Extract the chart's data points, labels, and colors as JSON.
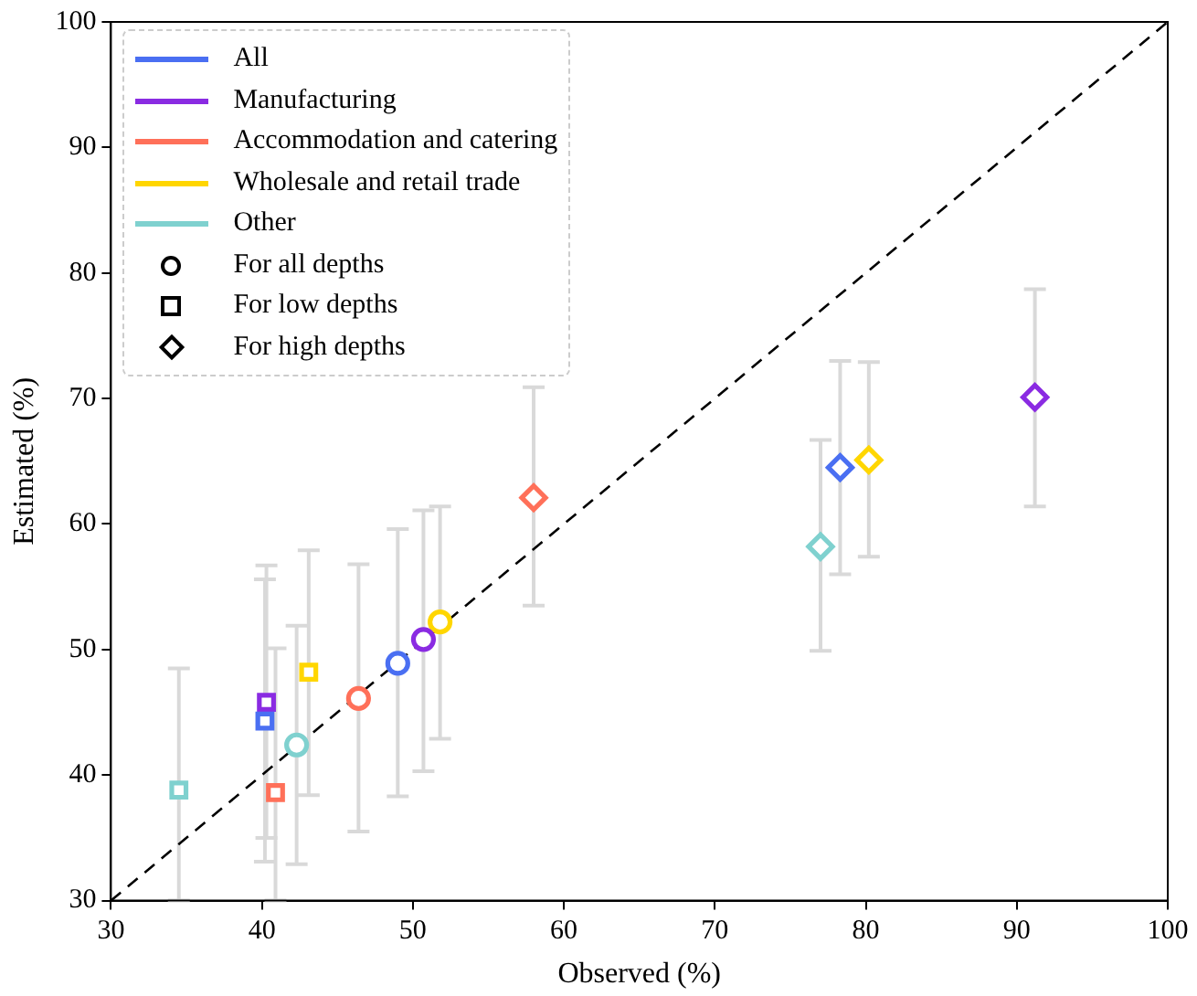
{
  "chart_data": {
    "type": "scatter",
    "xlabel": "Observed (%)",
    "ylabel": "Estimated (%)",
    "xlim": [
      30,
      100
    ],
    "xticks": [
      30,
      40,
      50,
      60,
      70,
      80,
      90,
      100
    ],
    "ylim": [
      30,
      100
    ],
    "yticks": [
      30,
      40,
      50,
      60,
      70,
      80,
      90,
      100
    ],
    "grid": false,
    "legend": "top left",
    "series": [
      {
        "name": "All",
        "color": "#4a6ff2",
        "marker": [
          "circle",
          "square",
          "diamond"
        ],
        "x": [
          49.0,
          40.2,
          78.3
        ],
        "values": [
          48.9,
          44.3,
          64.5
        ],
        "errors": [
          [
            38.3,
            59.6
          ],
          [
            33.1,
            55.6
          ],
          [
            56.0,
            73.0
          ]
        ]
      },
      {
        "name": "Manufacturing",
        "color": "#8a2be2",
        "marker": [
          "circle",
          "square",
          "diamond"
        ],
        "x": [
          50.7,
          40.3,
          91.2
        ],
        "values": [
          50.8,
          45.8,
          70.1
        ],
        "errors": [
          [
            40.3,
            61.1
          ],
          [
            35.0,
            56.7
          ],
          [
            61.4,
            78.7
          ]
        ]
      },
      {
        "name": "Accommodation and catering",
        "color": "#ff7059",
        "marker": [
          "circle",
          "square",
          "diamond"
        ],
        "x": [
          46.4,
          40.9,
          58.0
        ],
        "values": [
          46.1,
          38.6,
          62.1
        ],
        "errors": [
          [
            35.5,
            56.8
          ],
          [
            30,
            50.1
          ],
          [
            53.5,
            70.9
          ]
        ]
      },
      {
        "name": "Wholesale and retail trade",
        "color": "#ffd600",
        "marker": [
          "circle",
          "square",
          "diamond"
        ],
        "x": [
          51.8,
          43.1,
          80.2
        ],
        "values": [
          52.2,
          48.2,
          65.1
        ],
        "errors": [
          [
            42.9,
            61.4
          ],
          [
            38.4,
            57.9
          ],
          [
            57.4,
            72.9
          ]
        ]
      },
      {
        "name": "Other",
        "color": "#7fd1cf",
        "marker": [
          "circle",
          "square",
          "diamond"
        ],
        "x": [
          42.3,
          34.5,
          77.0
        ],
        "values": [
          42.4,
          38.8,
          58.2
        ],
        "errors": [
          [
            32.9,
            51.9
          ],
          [
            30,
            48.5
          ],
          [
            49.9,
            66.7
          ]
        ]
      },
      {
        "name": "For all depths",
        "color": "#000000",
        "marker": "circle"
      },
      {
        "name": "For low depths",
        "color": "#000000",
        "marker": "square"
      },
      {
        "name": "For high depths",
        "color": "#000000",
        "marker": "diamond"
      },
      {
        "type": "line",
        "color": "#000000",
        "line_style": "dashed",
        "marker": "none",
        "x": [
          30,
          100
        ],
        "values": [
          30,
          100
        ]
      }
    ]
  }
}
